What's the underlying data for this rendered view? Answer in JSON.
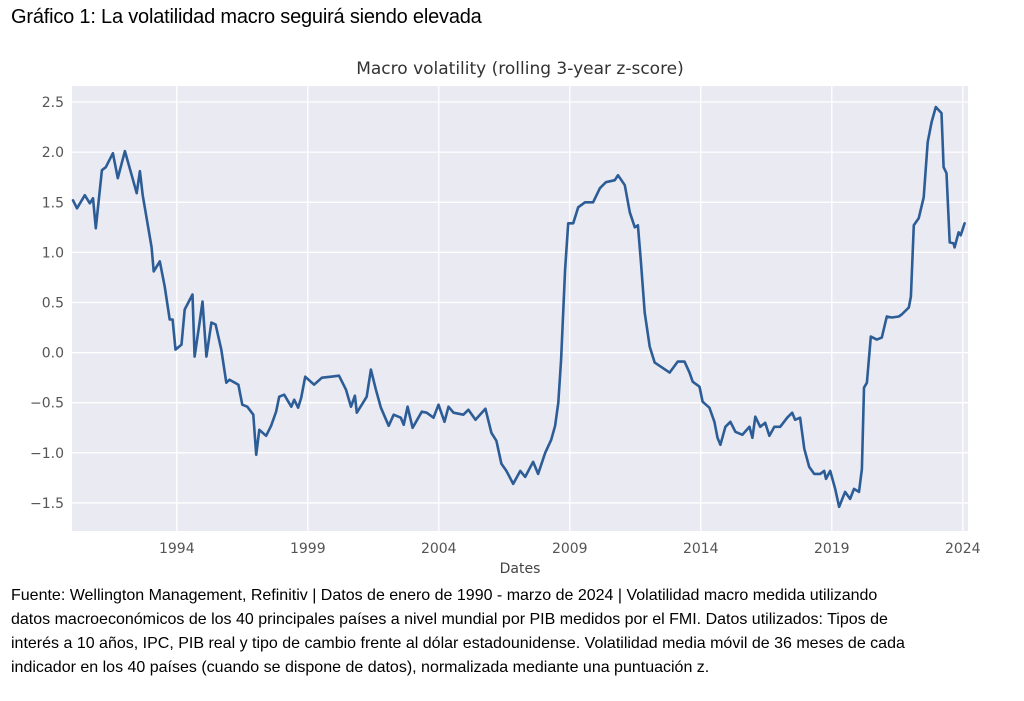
{
  "heading": "Gráfico 1: La volatilidad macro seguirá siendo elevada",
  "caption_lines": [
    "Fuente: Wellington Management, Refinitiv | Datos de enero de 1990 - marzo de 2024 | Volatilidad macro medida utilizando",
    "datos macroeconómicos de los 40 principales países a nivel mundial por PIB medidos por el FMI. Datos utilizados: Tipos de",
    "interés a 10 años, IPC, PIB real y tipo de cambio frente al dólar estadounidense. Volatilidad media móvil de 36 meses de cada",
    "indicador en los 40 países (cuando se dispone de datos), normalizada mediante una puntuación z."
  ],
  "chart_data": {
    "type": "line",
    "title": "Macro volatility (rolling 3-year z-score)",
    "xlabel": "Dates",
    "ylabel": "",
    "xlim": [
      1990.0,
      2024.2
    ],
    "ylim": [
      -1.78,
      2.66
    ],
    "x_ticks": [
      1994,
      1999,
      2004,
      2009,
      2014,
      2019,
      2024
    ],
    "x_tick_labels": [
      "1994",
      "1999",
      "2004",
      "2009",
      "2014",
      "2019",
      "2024"
    ],
    "y_ticks": [
      2.5,
      2.0,
      1.5,
      1.0,
      0.5,
      0.0,
      -0.5,
      -1.0,
      -1.5
    ],
    "y_tick_labels": [
      "2.5",
      "2.0",
      "1.5",
      "1.0",
      "0.5",
      "0.0",
      "−0.5",
      "−1.0",
      "−1.5"
    ],
    "grid": true,
    "background": "#eaeaf2",
    "grid_color": "#ffffff",
    "series": [
      {
        "name": "Macro volatility",
        "color": "#2d5d96",
        "x": [
          1990.04,
          1990.19,
          1990.49,
          1990.68,
          1990.8,
          1990.91,
          1991.14,
          1991.29,
          1991.56,
          1991.75,
          1992.02,
          1992.28,
          1992.47,
          1992.59,
          1992.7,
          1993.04,
          1993.12,
          1993.35,
          1993.54,
          1993.73,
          1993.84,
          1993.95,
          1994.18,
          1994.3,
          1994.6,
          1994.68,
          1994.87,
          1994.98,
          1995.13,
          1995.32,
          1995.48,
          1995.7,
          1995.89,
          1996.01,
          1996.35,
          1996.5,
          1996.69,
          1996.92,
          1997.03,
          1997.15,
          1997.41,
          1997.6,
          1997.79,
          1997.91,
          1998.1,
          1998.37,
          1998.48,
          1998.63,
          1998.75,
          1998.9,
          1999.24,
          1999.54,
          1999.89,
          2000.19,
          2000.46,
          2000.65,
          2000.8,
          2000.87,
          2001.06,
          2001.25,
          2001.41,
          2001.6,
          2001.79,
          2002.09,
          2002.28,
          2002.55,
          2002.66,
          2002.81,
          2003.0,
          2003.35,
          2003.54,
          2003.8,
          2003.99,
          2004.22,
          2004.37,
          2004.56,
          2004.94,
          2005.13,
          2005.4,
          2005.78,
          2006.01,
          2006.2,
          2006.39,
          2006.58,
          2006.84,
          2007.11,
          2007.3,
          2007.6,
          2007.79,
          2008.06,
          2008.29,
          2008.44,
          2008.56,
          2008.67,
          2008.82,
          2008.94,
          2009.13,
          2009.32,
          2009.58,
          2009.89,
          2010.15,
          2010.38,
          2010.72,
          2010.84,
          2011.1,
          2011.29,
          2011.48,
          2011.6,
          2011.71,
          2011.86,
          2012.05,
          2012.24,
          2012.47,
          2012.81,
          2013.12,
          2013.38,
          2013.57,
          2013.69,
          2013.95,
          2014.07,
          2014.33,
          2014.52,
          2014.64,
          2014.75,
          2014.94,
          2015.13,
          2015.32,
          2015.59,
          2015.86,
          2015.97,
          2016.08,
          2016.27,
          2016.46,
          2016.62,
          2016.81,
          2017.03,
          2017.3,
          2017.49,
          2017.6,
          2017.79,
          2017.95,
          2018.14,
          2018.33,
          2018.56,
          2018.71,
          2018.78,
          2018.94,
          2019.13,
          2019.28,
          2019.51,
          2019.7,
          2019.85,
          2020.04,
          2020.15,
          2020.23,
          2020.34,
          2020.49,
          2020.72,
          2020.91,
          2021.1,
          2021.29,
          2021.56,
          2021.67,
          2021.94,
          2022.02,
          2022.13,
          2022.32,
          2022.51,
          2022.66,
          2022.81,
          2022.97,
          2023.19,
          2023.27,
          2023.38,
          2023.5,
          2023.65,
          2023.69,
          2023.84,
          2023.92,
          2024.07
        ],
        "y": [
          1.52,
          1.44,
          1.57,
          1.49,
          1.54,
          1.24,
          1.82,
          1.85,
          1.99,
          1.74,
          2.01,
          1.77,
          1.59,
          1.81,
          1.57,
          1.05,
          0.81,
          0.91,
          0.66,
          0.33,
          0.33,
          0.03,
          0.08,
          0.43,
          0.58,
          -0.04,
          0.3,
          0.51,
          -0.04,
          0.3,
          0.28,
          0.03,
          -0.3,
          -0.27,
          -0.32,
          -0.52,
          -0.54,
          -0.62,
          -1.02,
          -0.77,
          -0.83,
          -0.73,
          -0.59,
          -0.44,
          -0.42,
          -0.54,
          -0.47,
          -0.55,
          -0.45,
          -0.24,
          -0.32,
          -0.25,
          -0.24,
          -0.23,
          -0.37,
          -0.54,
          -0.43,
          -0.6,
          -0.52,
          -0.44,
          -0.17,
          -0.37,
          -0.55,
          -0.73,
          -0.62,
          -0.65,
          -0.72,
          -0.54,
          -0.75,
          -0.59,
          -0.6,
          -0.65,
          -0.52,
          -0.69,
          -0.54,
          -0.6,
          -0.62,
          -0.57,
          -0.67,
          -0.56,
          -0.8,
          -0.88,
          -1.11,
          -1.18,
          -1.31,
          -1.18,
          -1.24,
          -1.09,
          -1.21,
          -1.0,
          -0.87,
          -0.73,
          -0.5,
          -0.07,
          0.83,
          1.29,
          1.29,
          1.45,
          1.5,
          1.5,
          1.64,
          1.7,
          1.72,
          1.77,
          1.67,
          1.4,
          1.25,
          1.27,
          0.92,
          0.4,
          0.06,
          -0.1,
          -0.14,
          -0.2,
          -0.09,
          -0.09,
          -0.2,
          -0.29,
          -0.34,
          -0.49,
          -0.55,
          -0.69,
          -0.85,
          -0.92,
          -0.74,
          -0.69,
          -0.79,
          -0.82,
          -0.74,
          -0.85,
          -0.64,
          -0.74,
          -0.7,
          -0.83,
          -0.74,
          -0.74,
          -0.65,
          -0.6,
          -0.67,
          -0.65,
          -0.96,
          -1.14,
          -1.21,
          -1.21,
          -1.18,
          -1.26,
          -1.18,
          -1.36,
          -1.54,
          -1.39,
          -1.46,
          -1.36,
          -1.39,
          -1.16,
          -0.35,
          -0.3,
          0.16,
          0.13,
          0.15,
          0.36,
          0.35,
          0.36,
          0.38,
          0.45,
          0.56,
          1.27,
          1.34,
          1.55,
          2.1,
          2.3,
          2.45,
          2.39,
          1.85,
          1.79,
          1.1,
          1.09,
          1.05,
          1.2,
          1.17,
          1.29
        ]
      }
    ]
  }
}
